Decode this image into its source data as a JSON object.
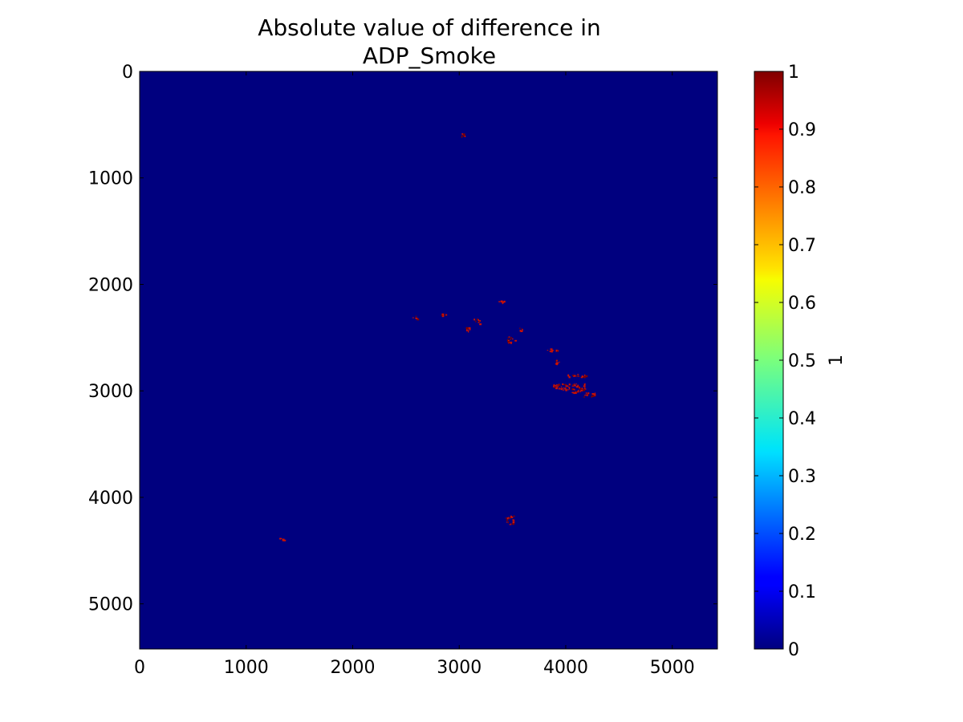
{
  "chart_data": {
    "type": "heatmap",
    "title_line1": "Absolute value of difference in",
    "title_line2": "ADP_Smoke",
    "xlim": [
      0,
      5424
    ],
    "ylim": [
      5424,
      0
    ],
    "x_ticks": [
      0,
      1000,
      2000,
      3000,
      4000,
      5000
    ],
    "y_ticks": [
      0,
      1000,
      2000,
      3000,
      4000,
      5000
    ],
    "x_tick_labels": [
      "0",
      "1000",
      "2000",
      "3000",
      "4000",
      "5000"
    ],
    "y_tick_labels": [
      "0",
      "1000",
      "2000",
      "3000",
      "4000",
      "5000"
    ],
    "background_value": 0,
    "colormap": "jet",
    "colorbar": {
      "label": "1",
      "range": [
        0,
        1
      ],
      "ticks": [
        0,
        0.1,
        0.2,
        0.3,
        0.4,
        0.5,
        0.6,
        0.7,
        0.8,
        0.9,
        1
      ],
      "tick_labels": [
        "0",
        "0.1",
        "0.2",
        "0.3",
        "0.4",
        "0.5",
        "0.6",
        "0.7",
        "0.8",
        "0.9",
        "1"
      ]
    },
    "colors": {
      "low": "#00007f",
      "high": "#7f0000",
      "difference_pixels": "#cc1100"
    },
    "difference_clusters": [
      {
        "x": 3050,
        "y": 2400,
        "w": 70,
        "h": 40,
        "value": 1
      },
      {
        "x": 3130,
        "y": 2320,
        "w": 60,
        "h": 50,
        "value": 1
      },
      {
        "x": 3450,
        "y": 2490,
        "w": 70,
        "h": 70,
        "value": 1
      },
      {
        "x": 3800,
        "y": 2600,
        "w": 120,
        "h": 30,
        "value": 1
      },
      {
        "x": 3900,
        "y": 2680,
        "w": 40,
        "h": 80,
        "value": 1
      },
      {
        "x": 4000,
        "y": 2840,
        "w": 200,
        "h": 30,
        "value": 1
      },
      {
        "x": 3880,
        "y": 2930,
        "w": 300,
        "h": 60,
        "value": 1
      },
      {
        "x": 4150,
        "y": 3010,
        "w": 130,
        "h": 40,
        "value": 1
      },
      {
        "x": 4050,
        "y": 2980,
        "w": 120,
        "h": 40,
        "value": 1
      },
      {
        "x": 3430,
        "y": 4170,
        "w": 80,
        "h": 80,
        "value": 1
      },
      {
        "x": 1310,
        "y": 4380,
        "w": 40,
        "h": 40,
        "value": 1
      },
      {
        "x": 2560,
        "y": 2290,
        "w": 50,
        "h": 40,
        "value": 1
      },
      {
        "x": 3360,
        "y": 2150,
        "w": 60,
        "h": 30,
        "value": 1
      },
      {
        "x": 3000,
        "y": 580,
        "w": 50,
        "h": 30,
        "value": 1
      },
      {
        "x": 3560,
        "y": 2400,
        "w": 30,
        "h": 40,
        "value": 1
      },
      {
        "x": 2830,
        "y": 2270,
        "w": 40,
        "h": 30,
        "value": 1
      }
    ]
  }
}
